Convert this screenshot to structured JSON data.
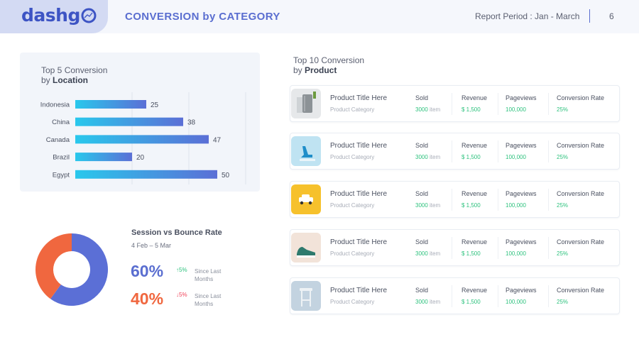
{
  "header": {
    "logo_text": "dashg",
    "title": "CONVERSION by CATEGORY",
    "report_period": "Report Period : Jan - March",
    "page_number": "6"
  },
  "location": {
    "title_line1": "Top 5 Conversion",
    "title_prefix": "by ",
    "title_bold": "Location"
  },
  "chart_data": {
    "type": "bar",
    "orientation": "horizontal",
    "categories": [
      "Indonesia",
      "China",
      "Canada",
      "Brazil",
      "Egypt"
    ],
    "values": [
      25,
      38,
      47,
      20,
      50
    ],
    "title": "",
    "xlim": [
      0,
      60
    ],
    "gridlines": [
      20,
      40,
      60
    ],
    "colors": {
      "start": "#29c8ec",
      "end": "#5b6fd6"
    }
  },
  "products": {
    "title_line1": "Top 10 Conversion",
    "title_prefix": "by ",
    "title_bold": "Product",
    "rows": [
      {
        "thumb_icon": "trash-bin-image",
        "name": "Product Title Here",
        "category": "Product Category",
        "sold_label": "Sold",
        "sold_value": "3000",
        "sold_unit": " item",
        "revenue_label": "Revenue",
        "revenue_value": "$ 1,500",
        "pageviews_label": "Pageviews",
        "pageviews_value": "100,000",
        "conversion_label": "Conversion Rate",
        "conversion_value": "25%"
      },
      {
        "thumb_icon": "blue-heel-image",
        "name": "Product Title Here",
        "category": "Product Category",
        "sold_label": "Sold",
        "sold_value": "3000",
        "sold_unit": " item",
        "revenue_label": "Revenue",
        "revenue_value": "$ 1,500",
        "pageviews_label": "Pageviews",
        "pageviews_value": "100,000",
        "conversion_label": "Conversion Rate",
        "conversion_value": "25%"
      },
      {
        "thumb_icon": "toy-car-image",
        "name": "Product Title Here",
        "category": "Product Category",
        "sold_label": "Sold",
        "sold_value": "3000",
        "sold_unit": " item",
        "revenue_label": "Revenue",
        "revenue_value": "$ 1,500",
        "pageviews_label": "Pageviews",
        "pageviews_value": "100,000",
        "conversion_label": "Conversion Rate",
        "conversion_value": "25%"
      },
      {
        "thumb_icon": "green-shoe-image",
        "name": "Product Title Here",
        "category": "Product Category",
        "sold_label": "Sold",
        "sold_value": "3000",
        "sold_unit": " item",
        "revenue_label": "Revenue",
        "revenue_value": "$ 1,500",
        "pageviews_label": "Pageviews",
        "pageviews_value": "100,000",
        "conversion_label": "Conversion Rate",
        "conversion_value": "25%"
      },
      {
        "thumb_icon": "bar-stool-image",
        "name": "Product Title Here",
        "category": "Product Category",
        "sold_label": "Sold",
        "sold_value": "3000",
        "sold_unit": " item",
        "revenue_label": "Revenue",
        "revenue_value": "$ 1,500",
        "pageviews_label": "Pageviews",
        "pageviews_value": "100,000",
        "conversion_label": "Conversion Rate",
        "conversion_value": "25%"
      }
    ]
  },
  "session": {
    "title": "Session vs Bounce Rate",
    "date_range": "4 Feb – 5 Mar",
    "session_value": "60%",
    "session_fraction": 0.6,
    "session_change": "5%",
    "bounce_value": "40%",
    "bounce_fraction": 0.4,
    "bounce_change": "5%",
    "since_label": "Since Last Months",
    "colors": {
      "session": "#5b6fd6",
      "bounce": "#f0673f"
    }
  }
}
